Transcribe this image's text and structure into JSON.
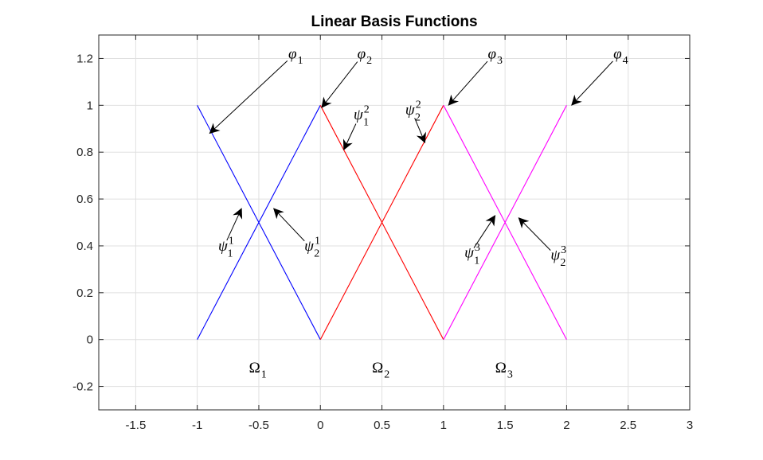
{
  "chart_data": {
    "type": "line",
    "title": "Linear Basis Functions",
    "xlabel": "",
    "ylabel": "",
    "xlim": [
      -1.8,
      3.0
    ],
    "ylim": [
      -0.3,
      1.3
    ],
    "grid": true,
    "x_ticks": [
      -1.5,
      -1,
      -0.5,
      0,
      0.5,
      1,
      1.5,
      2,
      2.5,
      3
    ],
    "x_tick_labels": [
      "-1.5",
      "-1",
      "-0.5",
      "0",
      "0.5",
      "1",
      "1.5",
      "2",
      "2.5",
      "3"
    ],
    "y_ticks": [
      -0.2,
      0,
      0.2,
      0.4,
      0.6,
      0.8,
      1,
      1.2
    ],
    "y_tick_labels": [
      "-0.2",
      "0",
      "0.2",
      "0.4",
      "0.6",
      "0.8",
      "1",
      "1.2"
    ],
    "series": [
      {
        "color": "#0000ff",
        "x": [
          -1,
          0
        ],
        "y": [
          1,
          0
        ]
      },
      {
        "color": "#0000ff",
        "x": [
          -1,
          0
        ],
        "y": [
          0,
          1
        ]
      },
      {
        "color": "#ff0000",
        "x": [
          0,
          1
        ],
        "y": [
          1,
          0
        ]
      },
      {
        "color": "#ff0000",
        "x": [
          0,
          1
        ],
        "y": [
          0,
          1
        ]
      },
      {
        "color": "#ff00ff",
        "x": [
          1,
          2
        ],
        "y": [
          1,
          0
        ]
      },
      {
        "color": "#ff00ff",
        "x": [
          1,
          2
        ],
        "y": [
          0,
          1
        ]
      }
    ],
    "annotations": [
      {
        "symbol": "φ",
        "sub": "1",
        "sup": "",
        "text_at": [
          -0.26,
          1.2
        ],
        "arrow_to": [
          -0.9,
          0.88
        ]
      },
      {
        "symbol": "φ",
        "sub": "2",
        "sup": "",
        "text_at": [
          0.3,
          1.2
        ],
        "arrow_to": [
          0.01,
          0.99
        ]
      },
      {
        "symbol": "φ",
        "sub": "3",
        "sup": "",
        "text_at": [
          1.36,
          1.2
        ],
        "arrow_to": [
          1.04,
          1.0
        ]
      },
      {
        "symbol": "φ",
        "sub": "4",
        "sup": "",
        "text_at": [
          2.38,
          1.2
        ],
        "arrow_to": [
          2.04,
          1.0
        ]
      },
      {
        "symbol": "ψ",
        "sub": "1",
        "sup": "1",
        "text_at": [
          -0.83,
          0.38
        ],
        "arrow_to": [
          -0.64,
          0.56
        ]
      },
      {
        "symbol": "ψ",
        "sub": "2",
        "sup": "1",
        "text_at": [
          -0.13,
          0.38
        ],
        "arrow_to": [
          -0.38,
          0.56
        ]
      },
      {
        "symbol": "ψ",
        "sub": "1",
        "sup": "2",
        "text_at": [
          0.27,
          0.94
        ],
        "arrow_to": [
          0.19,
          0.81
        ]
      },
      {
        "symbol": "ψ",
        "sub": "2",
        "sup": "2",
        "text_at": [
          0.69,
          0.96
        ],
        "arrow_to": [
          0.85,
          0.84
        ]
      },
      {
        "symbol": "ψ",
        "sub": "1",
        "sup": "3",
        "text_at": [
          1.17,
          0.35
        ],
        "arrow_to": [
          1.42,
          0.53
        ]
      },
      {
        "symbol": "ψ",
        "sub": "2",
        "sup": "3",
        "text_at": [
          1.87,
          0.34
        ],
        "arrow_to": [
          1.61,
          0.52
        ]
      }
    ],
    "domain_labels": [
      {
        "symbol": "Ω",
        "sub": "1",
        "at": [
          -0.58,
          -0.14
        ]
      },
      {
        "symbol": "Ω",
        "sub": "2",
        "at": [
          0.42,
          -0.14
        ]
      },
      {
        "symbol": "Ω",
        "sub": "3",
        "at": [
          1.42,
          -0.14
        ]
      }
    ]
  }
}
